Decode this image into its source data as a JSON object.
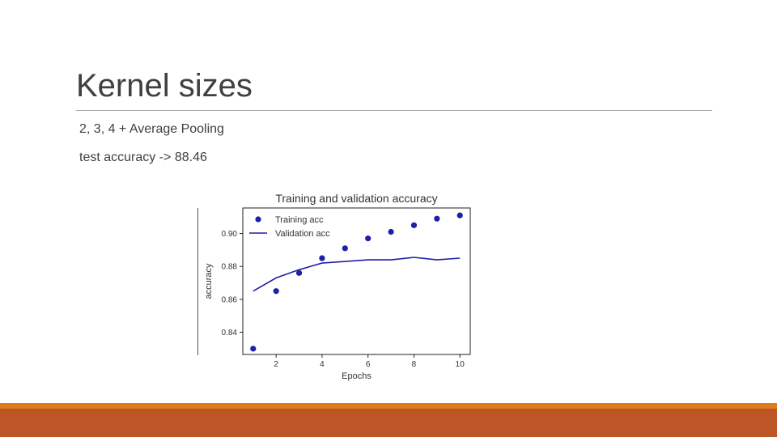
{
  "slide": {
    "title": "Kernel sizes",
    "bullets": [
      "2, 3, 4 + Average Pooling",
      "test accuracy -> 88.46"
    ]
  },
  "colors": {
    "series": "#1f1fa8",
    "band": "#bd5527",
    "band_top": "#e07b1d"
  },
  "chart_data": {
    "type": "line",
    "title": "Training and validation accuracy",
    "xlabel": "Epochs",
    "ylabel": "accuracy",
    "xlim": [
      0.55,
      10.45
    ],
    "ylim": [
      0.8265,
      0.9155
    ],
    "xticks": [
      2,
      4,
      6,
      8,
      10
    ],
    "yticks": [
      0.84,
      0.86,
      0.88,
      0.9
    ],
    "ytick_labels": [
      "0.84",
      "0.86",
      "0.88",
      "0.90"
    ],
    "grid": false,
    "legend_position": "top-left",
    "series": [
      {
        "name": "Training acc",
        "style": "dots",
        "x": [
          1,
          2,
          3,
          4,
          5,
          6,
          7,
          8,
          9,
          10
        ],
        "values": [
          0.83,
          0.865,
          0.876,
          0.885,
          0.891,
          0.897,
          0.901,
          0.905,
          0.909,
          0.911
        ]
      },
      {
        "name": "Validation acc",
        "style": "line",
        "x": [
          1,
          2,
          3,
          4,
          5,
          6,
          7,
          8,
          9,
          10
        ],
        "values": [
          0.865,
          0.873,
          0.878,
          0.882,
          0.883,
          0.884,
          0.884,
          0.8855,
          0.884,
          0.885
        ]
      }
    ]
  }
}
